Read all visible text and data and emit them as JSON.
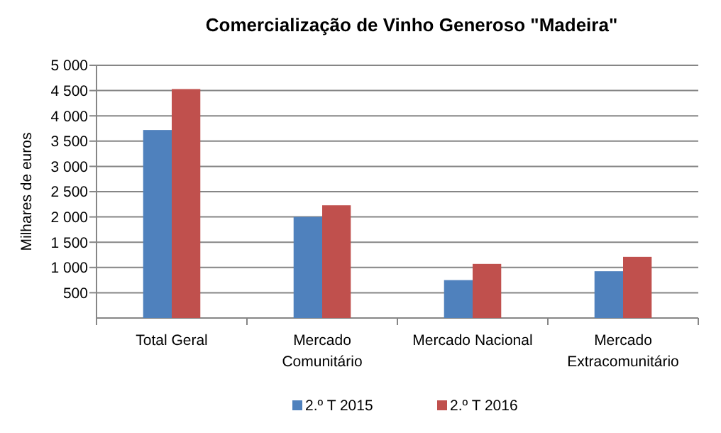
{
  "chart_data": {
    "type": "bar",
    "title": "Comercialização de Vinho Generoso \"Madeira\"",
    "ylabel": "Milhares de euros",
    "categories": [
      "Total Geral",
      "Mercado Comunitário",
      "Mercado Nacional",
      "Mercado Extracomunitário"
    ],
    "series": [
      {
        "name": "2.º T 2015",
        "color": "#4f81bd",
        "values": [
          3720,
          2000,
          750,
          925
        ]
      },
      {
        "name": "2.º T 2016",
        "color": "#c0504d",
        "values": [
          4530,
          2230,
          1070,
          1210
        ]
      }
    ],
    "ylim": [
      0,
      5000
    ],
    "yticks": [
      500,
      {
        "value": 1000,
        "label": "1 000"
      },
      {
        "value": 1500,
        "label": "1 500"
      },
      {
        "value": 2000,
        "label": "2 000"
      },
      {
        "value": 2500,
        "label": "2 500"
      },
      {
        "value": 3000,
        "label": "3 000"
      },
      {
        "value": 3500,
        "label": "3 500"
      },
      {
        "value": 4000,
        "label": "4 000"
      },
      {
        "value": 4500,
        "label": "4 500"
      },
      {
        "value": 5000,
        "label": "5 000"
      }
    ],
    "grid": "y",
    "legend": "bottom"
  }
}
